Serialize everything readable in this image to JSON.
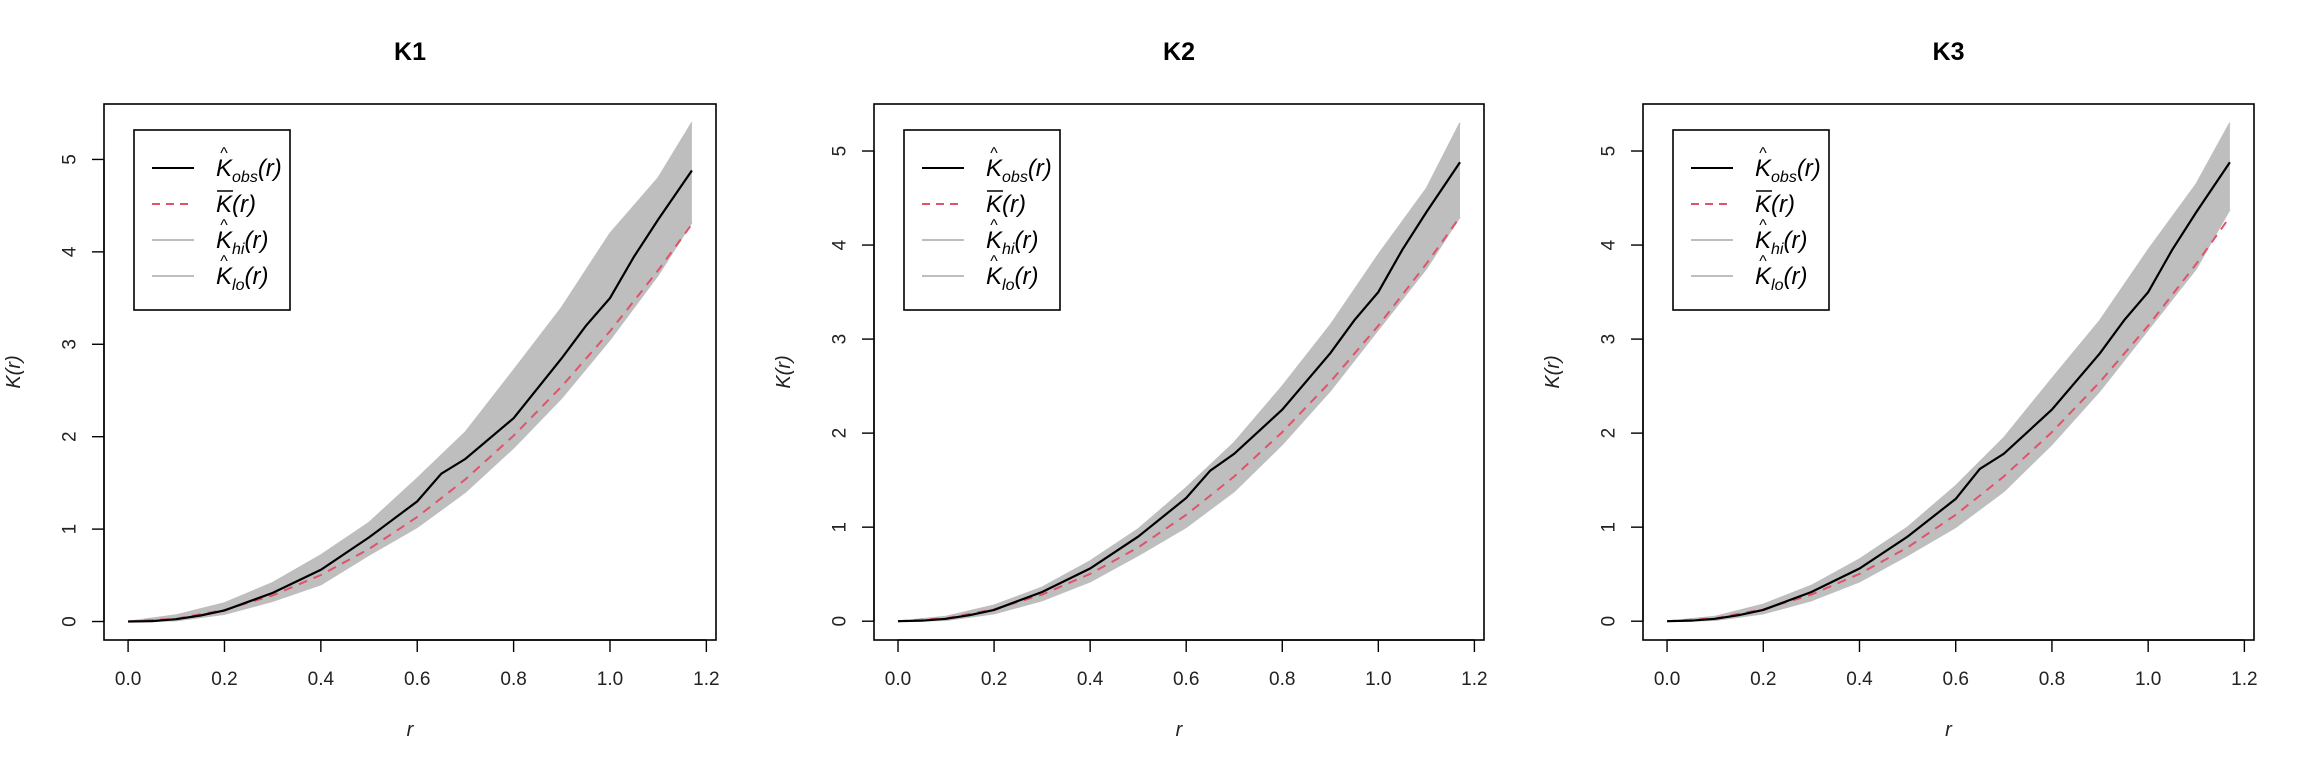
{
  "legend": [
    {
      "base": "K",
      "accent": "^",
      "sub": "obs",
      "arg": "(r)",
      "color": "#000000",
      "dash": false
    },
    {
      "base": "K",
      "accent": "bar",
      "sub": "",
      "arg": "(r)",
      "color": "#DF536B",
      "dash": true
    },
    {
      "base": "K",
      "accent": "^",
      "sub": "hi",
      "arg": "(r)",
      "color": "#BEBEBE",
      "dash": false
    },
    {
      "base": "K",
      "accent": "^",
      "sub": "lo",
      "arg": "(r)",
      "color": "#BEBEBE",
      "dash": false
    }
  ],
  "colors": {
    "observed": "#000000",
    "theoretical": "#DF536B",
    "envelope": "#BEBEBE"
  },
  "chart_data": [
    {
      "type": "line",
      "title": "K1",
      "xlabel": "r",
      "ylabel": "K(r)",
      "xlim": [
        -0.05,
        1.22
      ],
      "ylim": [
        -0.2,
        5.6
      ],
      "xticks": [
        "0.0",
        "0.2",
        "0.4",
        "0.6",
        "0.8",
        "1.0",
        "1.2"
      ],
      "yticks": [
        "0",
        "1",
        "2",
        "3",
        "4",
        "5"
      ],
      "legend_position": "top-left",
      "series": [
        {
          "name": "K_obs(r)",
          "x": [
            0,
            0.05,
            0.1,
            0.15,
            0.2,
            0.3,
            0.4,
            0.5,
            0.6,
            0.65,
            0.7,
            0.8,
            0.9,
            0.95,
            1.0,
            1.05,
            1.1,
            1.17
          ],
          "y": [
            0,
            0.005,
            0.025,
            0.065,
            0.12,
            0.31,
            0.56,
            0.91,
            1.3,
            1.6,
            1.76,
            2.2,
            2.85,
            3.2,
            3.5,
            3.95,
            4.35,
            4.88
          ]
        },
        {
          "name": "K_theo(r)",
          "x": [
            0,
            0.1,
            0.2,
            0.3,
            0.4,
            0.5,
            0.6,
            0.7,
            0.8,
            0.9,
            1.0,
            1.1,
            1.17
          ],
          "y": [
            0,
            0.031,
            0.126,
            0.283,
            0.503,
            0.785,
            1.131,
            1.539,
            2.011,
            2.545,
            3.142,
            3.801,
            4.3
          ]
        },
        {
          "name": "K_hi(r)",
          "x": [
            0,
            0.1,
            0.2,
            0.3,
            0.4,
            0.5,
            0.6,
            0.7,
            0.8,
            0.9,
            1.0,
            1.1,
            1.17
          ],
          "y": [
            0,
            0.07,
            0.2,
            0.42,
            0.72,
            1.07,
            1.55,
            2.05,
            2.72,
            3.4,
            4.2,
            4.8,
            5.4
          ]
        },
        {
          "name": "K_lo(r)",
          "x": [
            0,
            0.1,
            0.2,
            0.3,
            0.4,
            0.5,
            0.6,
            0.7,
            0.8,
            0.9,
            1.0,
            1.1,
            1.17
          ],
          "y": [
            0,
            0.01,
            0.08,
            0.22,
            0.4,
            0.72,
            1.02,
            1.4,
            1.88,
            2.42,
            3.05,
            3.75,
            4.32
          ]
        }
      ]
    },
    {
      "type": "line",
      "title": "K2",
      "xlabel": "r",
      "ylabel": "K(r)",
      "xlim": [
        -0.05,
        1.22
      ],
      "ylim": [
        -0.2,
        5.5
      ],
      "xticks": [
        "0.0",
        "0.2",
        "0.4",
        "0.6",
        "0.8",
        "1.0",
        "1.2"
      ],
      "yticks": [
        "0",
        "1",
        "2",
        "3",
        "4",
        "5"
      ],
      "legend_position": "top-left",
      "series": [
        {
          "name": "K_obs(r)",
          "x": [
            0,
            0.05,
            0.1,
            0.15,
            0.2,
            0.3,
            0.4,
            0.5,
            0.6,
            0.65,
            0.7,
            0.8,
            0.9,
            0.95,
            1.0,
            1.05,
            1.1,
            1.17
          ],
          "y": [
            0,
            0.005,
            0.025,
            0.065,
            0.12,
            0.31,
            0.56,
            0.9,
            1.31,
            1.6,
            1.78,
            2.25,
            2.85,
            3.2,
            3.5,
            3.95,
            4.35,
            4.88
          ]
        },
        {
          "name": "K_theo(r)",
          "x": [
            0,
            0.1,
            0.2,
            0.3,
            0.4,
            0.5,
            0.6,
            0.7,
            0.8,
            0.9,
            1.0,
            1.1,
            1.17
          ],
          "y": [
            0,
            0.031,
            0.126,
            0.283,
            0.503,
            0.785,
            1.131,
            1.539,
            2.011,
            2.545,
            3.142,
            3.801,
            4.3
          ]
        },
        {
          "name": "K_hi(r)",
          "x": [
            0,
            0.1,
            0.2,
            0.3,
            0.4,
            0.5,
            0.6,
            0.7,
            0.8,
            0.9,
            1.0,
            1.1,
            1.17
          ],
          "y": [
            0,
            0.05,
            0.17,
            0.36,
            0.64,
            0.98,
            1.42,
            1.9,
            2.5,
            3.15,
            3.9,
            4.6,
            5.3
          ]
        },
        {
          "name": "K_lo(r)",
          "x": [
            0,
            0.1,
            0.2,
            0.3,
            0.4,
            0.5,
            0.6,
            0.7,
            0.8,
            0.9,
            1.0,
            1.1,
            1.17
          ],
          "y": [
            0,
            0.01,
            0.08,
            0.22,
            0.42,
            0.7,
            1.0,
            1.38,
            1.88,
            2.45,
            3.1,
            3.75,
            4.3
          ]
        }
      ]
    },
    {
      "type": "line",
      "title": "K3",
      "xlabel": "r",
      "ylabel": "K(r)",
      "xlim": [
        -0.05,
        1.22
      ],
      "ylim": [
        -0.2,
        5.5
      ],
      "xticks": [
        "0.0",
        "0.2",
        "0.4",
        "0.6",
        "0.8",
        "1.0",
        "1.2"
      ],
      "yticks": [
        "0",
        "1",
        "2",
        "3",
        "4",
        "5"
      ],
      "legend_position": "top-left",
      "series": [
        {
          "name": "K_obs(r)",
          "x": [
            0,
            0.05,
            0.1,
            0.15,
            0.2,
            0.3,
            0.4,
            0.5,
            0.6,
            0.65,
            0.7,
            0.8,
            0.9,
            0.95,
            1.0,
            1.05,
            1.1,
            1.17
          ],
          "y": [
            0,
            0.005,
            0.025,
            0.065,
            0.12,
            0.31,
            0.56,
            0.9,
            1.3,
            1.62,
            1.78,
            2.25,
            2.85,
            3.2,
            3.5,
            3.95,
            4.35,
            4.88
          ]
        },
        {
          "name": "K_theo(r)",
          "x": [
            0,
            0.1,
            0.2,
            0.3,
            0.4,
            0.5,
            0.6,
            0.7,
            0.8,
            0.9,
            1.0,
            1.1,
            1.17
          ],
          "y": [
            0,
            0.031,
            0.126,
            0.283,
            0.503,
            0.785,
            1.131,
            1.539,
            2.011,
            2.545,
            3.142,
            3.801,
            4.3
          ]
        },
        {
          "name": "K_hi(r)",
          "x": [
            0,
            0.1,
            0.2,
            0.3,
            0.4,
            0.5,
            0.6,
            0.7,
            0.8,
            0.9,
            1.0,
            1.1,
            1.17
          ],
          "y": [
            0,
            0.05,
            0.18,
            0.38,
            0.66,
            1.0,
            1.44,
            1.95,
            2.58,
            3.2,
            3.95,
            4.65,
            5.3
          ]
        },
        {
          "name": "K_lo(r)",
          "x": [
            0,
            0.1,
            0.2,
            0.3,
            0.4,
            0.5,
            0.6,
            0.7,
            0.8,
            0.9,
            1.0,
            1.1,
            1.17
          ],
          "y": [
            0,
            0.01,
            0.08,
            0.22,
            0.42,
            0.7,
            1.0,
            1.38,
            1.88,
            2.45,
            3.1,
            3.75,
            4.38
          ]
        }
      ]
    }
  ]
}
